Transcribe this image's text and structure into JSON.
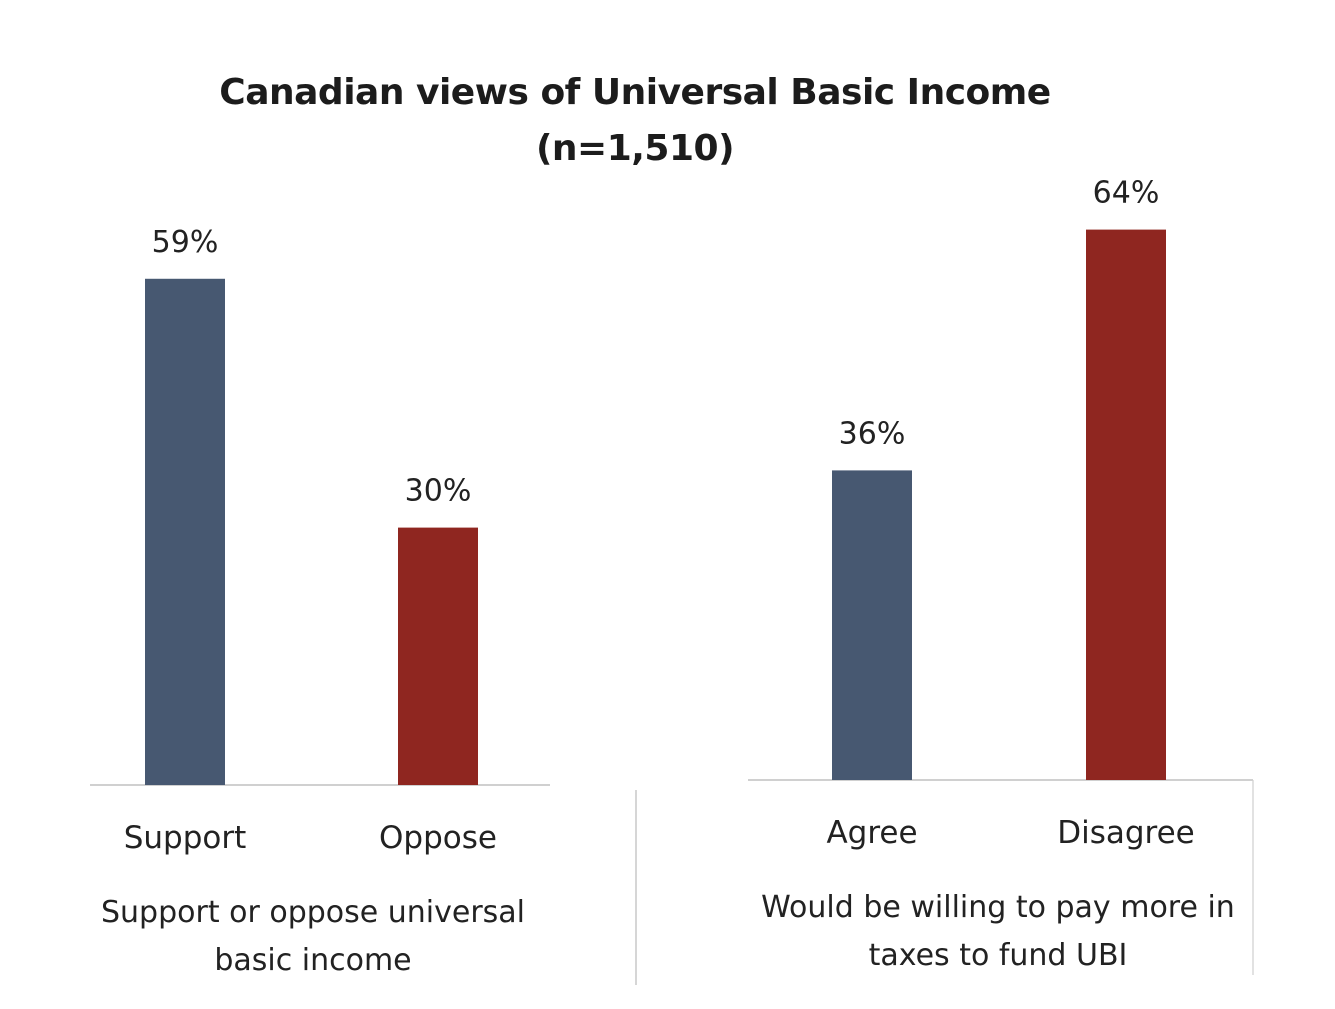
{
  "chart_data": {
    "type": "bar",
    "title": "Canadian views of Universal Basic Income",
    "subtitle": "(n=1,510)",
    "ylim": [
      0,
      70
    ],
    "grid": false,
    "colors": {
      "primary": "#475871",
      "secondary": "#8f2620"
    },
    "groups": [
      {
        "label_lines": [
          "Support or oppose universal",
          "basic income"
        ],
        "categories": [
          "Support",
          "Oppose"
        ],
        "values": [
          59,
          30
        ],
        "value_labels": [
          "59%",
          "30%"
        ]
      },
      {
        "label_lines": [
          "Would be willing to pay more in",
          "taxes to fund UBI"
        ],
        "categories": [
          "Agree",
          "Disagree"
        ],
        "values": [
          36,
          64
        ],
        "value_labels": [
          "36%",
          "64%"
        ]
      }
    ]
  }
}
